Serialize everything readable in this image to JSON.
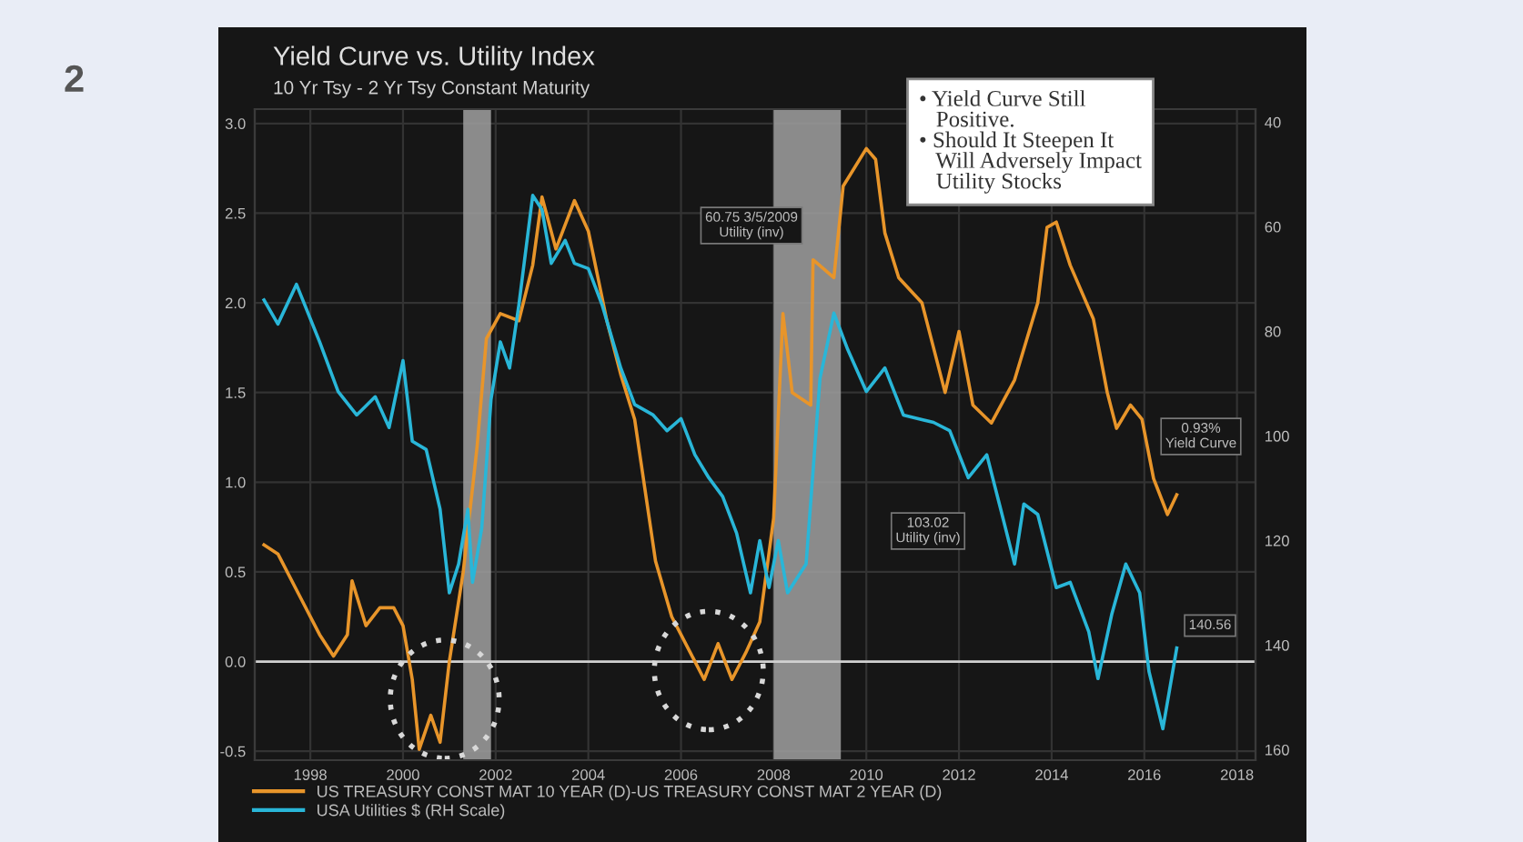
{
  "chart_data": {
    "type": "line",
    "title": "Yield Curve vs. Utility Index",
    "subtitle": "10 Yr Tsy - 2 Yr Tsy Constant Maturity",
    "series": [
      {
        "name": "US TREASURY CONST MAT 10 YEAR (D)-US TREASURY CONST MAT 2 YEAR (D)",
        "color": "#e8952a",
        "x": [
          1997.0,
          1997.3,
          1997.8,
          1998.2,
          1998.5,
          1998.8,
          1998.9,
          1999.2,
          1999.5,
          1999.8,
          2000.0,
          2000.2,
          2000.35,
          2000.6,
          2000.8,
          2001.0,
          2001.3,
          2001.6,
          2001.8,
          2002.1,
          2002.5,
          2002.8,
          2003.0,
          2003.3,
          2003.7,
          2004.0,
          2004.4,
          2004.7,
          2005.0,
          2005.45,
          2005.8,
          2006.2,
          2006.5,
          2006.8,
          2007.1,
          2007.4,
          2007.7,
          2008.0,
          2008.2,
          2008.4,
          2008.8,
          2008.85,
          2009.3,
          2009.5,
          2010.0,
          2010.2,
          2010.4,
          2010.7,
          2011.2,
          2011.7,
          2012.0,
          2012.3,
          2012.7,
          2013.2,
          2013.7,
          2013.9,
          2014.1,
          2014.4,
          2014.9,
          2015.2,
          2015.4,
          2015.7,
          2015.95,
          2016.2,
          2016.5,
          2016.7
        ],
        "values": [
          0.65,
          0.6,
          0.35,
          0.15,
          0.03,
          0.15,
          0.45,
          0.2,
          0.3,
          0.3,
          0.2,
          -0.1,
          -0.49,
          -0.3,
          -0.45,
          0.0,
          0.5,
          1.2,
          1.8,
          1.94,
          1.9,
          2.21,
          2.59,
          2.3,
          2.57,
          2.4,
          1.9,
          1.6,
          1.35,
          0.56,
          0.25,
          0.05,
          -0.1,
          0.1,
          -0.1,
          0.05,
          0.22,
          0.8,
          1.94,
          1.5,
          1.43,
          2.24,
          2.14,
          2.65,
          2.86,
          2.8,
          2.39,
          2.14,
          2.0,
          1.5,
          1.84,
          1.43,
          1.33,
          1.57,
          2.0,
          2.42,
          2.45,
          2.21,
          1.91,
          1.5,
          1.3,
          1.43,
          1.35,
          1.02,
          0.82,
          0.93
        ]
      },
      {
        "name": "USA Utilities $ (RH Scale)",
        "color": "#29b6d8",
        "axis": "y2",
        "x": [
          1997.0,
          1997.3,
          1997.7,
          1998.2,
          1998.6,
          1999.0,
          1999.4,
          1999.7,
          2000.0,
          2000.2,
          2000.5,
          2000.8,
          2001.0,
          2001.2,
          2001.4,
          2001.5,
          2001.7,
          2001.9,
          2002.1,
          2002.3,
          2002.5,
          2002.8,
          2003.0,
          2003.2,
          2003.5,
          2003.7,
          2004.0,
          2004.3,
          2004.7,
          2005.0,
          2005.4,
          2005.7,
          2006.0,
          2006.3,
          2006.6,
          2006.9,
          2007.2,
          2007.5,
          2007.7,
          2007.9,
          2008.1,
          2008.3,
          2008.7,
          2009.0,
          2009.3,
          2009.6,
          2010.0,
          2010.4,
          2010.8,
          2011.45,
          2011.8,
          2012.2,
          2012.6,
          2012.9,
          2013.2,
          2013.4,
          2013.7,
          2014.1,
          2014.4,
          2014.8,
          2015.0,
          2015.3,
          2015.6,
          2015.9,
          2016.1,
          2016.4,
          2016.7
        ],
        "values": [
          74,
          78.6,
          71,
          82,
          91.5,
          96,
          92.5,
          98.4,
          85.6,
          101,
          102.6,
          114,
          130,
          124.5,
          114,
          128,
          117.6,
          93,
          82,
          87,
          75,
          54,
          56.7,
          67,
          62.6,
          67,
          68,
          75,
          87,
          94,
          96,
          99,
          96.7,
          103.6,
          108,
          111.6,
          118.6,
          130,
          120,
          129,
          120,
          130,
          124.5,
          89,
          76.5,
          83.5,
          91.5,
          87,
          96,
          97.4,
          99,
          108,
          103.6,
          114,
          124.5,
          113,
          115,
          129,
          128,
          137.4,
          146.4,
          134,
          124.5,
          130,
          145,
          156,
          140.56
        ]
      }
    ],
    "xlim": [
      1996.8,
      2018.4
    ],
    "xticks": [
      1998,
      2000,
      2002,
      2004,
      2006,
      2008,
      2010,
      2012,
      2014,
      2016,
      2018
    ],
    "ylim": [
      -0.55,
      3.08
    ],
    "yticks": [
      {
        "value": 3.0,
        "label": "3.0"
      },
      {
        "value": 2.5,
        "label": "2.5"
      },
      {
        "value": 2.0,
        "label": "2.0"
      },
      {
        "value": 1.5,
        "label": "1.5"
      },
      {
        "value": 1.0,
        "label": "1.0"
      },
      {
        "value": 0.5,
        "label": "0.5"
      },
      {
        "value": 0.0,
        "label": "0.0"
      },
      {
        "value": -0.5,
        "label": "-0.5"
      }
    ],
    "y2lim": [
      162,
      37.5
    ],
    "y2ticks": [
      40,
      60,
      80,
      100,
      120,
      140,
      160
    ],
    "ref_lines": [
      {
        "axis": "y",
        "value": 0,
        "color": "#d0d0d0"
      }
    ],
    "bands": [
      {
        "axis": "x",
        "from": 2001.3,
        "to": 2001.9,
        "color": "#a0a0a0"
      },
      {
        "axis": "x",
        "from": 2008.0,
        "to": 2009.45,
        "color": "#a0a0a0"
      }
    ],
    "grid": true,
    "legend": "bottom left",
    "annotations": [
      "2",
      "• Yield Curve Still\n   Positive.\n• Should It Steepen It\n   Will Adversely Impact\n   Utility Stocks",
      "60.75 3/5/2009\nUtility (inv)",
      "103.02\nUtility (inv)",
      "0.93%\nYield Curve",
      "140.56"
    ]
  }
}
